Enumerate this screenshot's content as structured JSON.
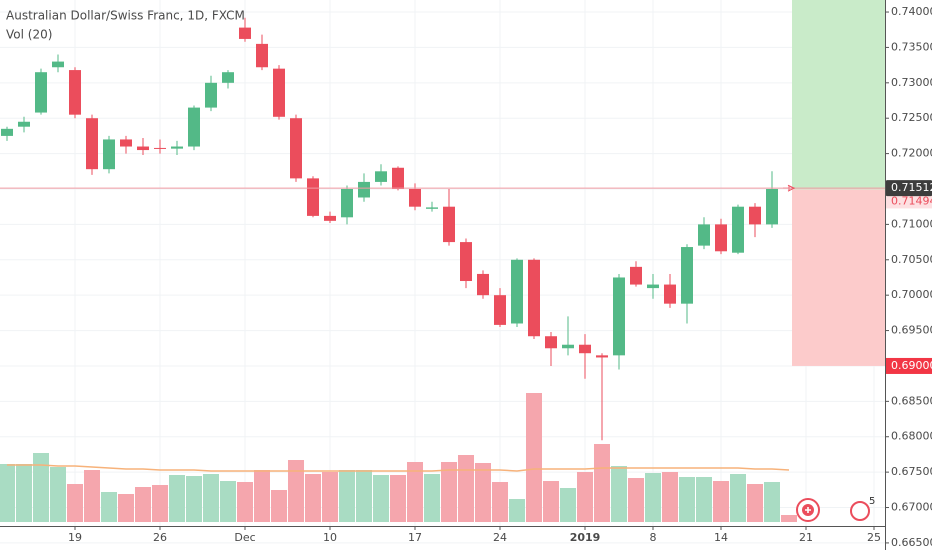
{
  "chart_data": {
    "type": "candlestick",
    "title": "Australian Dollar/Swiss Franc, 1D, FXCM",
    "indicator_label": "Vol (20)",
    "categories": [
      null,
      null,
      null,
      null,
      "19",
      null,
      null,
      null,
      null,
      "26",
      null,
      null,
      null,
      null,
      "Dec",
      null,
      null,
      null,
      null,
      "10",
      null,
      null,
      null,
      null,
      "17",
      null,
      null,
      null,
      null,
      "24",
      null,
      null,
      null,
      null,
      "2019",
      null,
      null,
      null,
      "8",
      null,
      null,
      null,
      "14",
      null,
      null,
      null,
      null,
      "21",
      null,
      null,
      null,
      "25"
    ],
    "open": [
      0.7225,
      0.7238,
      0.7258,
      0.7322,
      0.7318,
      0.725,
      0.7178,
      0.722,
      0.721,
      0.7208,
      0.7207,
      0.721,
      0.7265,
      0.73,
      0.7378,
      0.7355,
      0.732,
      0.725,
      0.7165,
      0.7112,
      0.711,
      0.7138,
      0.716,
      0.718,
      0.715,
      0.7122,
      0.7125,
      0.7075,
      0.703,
      0.7,
      0.696,
      0.705,
      0.6942,
      0.6925,
      0.693,
      0.6915,
      0.6915,
      0.704,
      0.701,
      0.7015,
      0.6988,
      0.707,
      0.71,
      0.706,
      0.7125,
      0.71,
      0.7152,
      null,
      null,
      null,
      null,
      null
    ],
    "high": [
      0.7238,
      0.7252,
      0.732,
      0.734,
      0.7322,
      0.7255,
      0.7225,
      0.7225,
      0.7222,
      0.722,
      0.7218,
      0.7268,
      0.731,
      0.7318,
      0.7392,
      0.7368,
      0.7325,
      0.7255,
      0.7168,
      0.7118,
      0.7155,
      0.7172,
      0.7185,
      0.7182,
      0.7158,
      0.7132,
      0.715,
      0.708,
      0.7035,
      0.701,
      0.7052,
      0.7052,
      0.6948,
      0.697,
      0.6945,
      0.6918,
      0.703,
      0.7048,
      0.703,
      0.703,
      0.7072,
      0.711,
      0.7108,
      0.7128,
      0.713,
      0.7175,
      0.7154,
      null,
      null,
      null,
      null,
      null
    ],
    "low": [
      0.7218,
      0.723,
      0.7255,
      0.7315,
      0.725,
      0.717,
      0.7172,
      0.72,
      0.7198,
      0.72,
      0.7198,
      0.7205,
      0.726,
      0.7292,
      0.7358,
      0.7318,
      0.7248,
      0.716,
      0.711,
      0.7102,
      0.71,
      0.7132,
      0.7155,
      0.7148,
      0.712,
      0.7118,
      0.707,
      0.701,
      0.6995,
      0.6955,
      0.6955,
      0.6938,
      0.69,
      0.6915,
      0.6882,
      0.6795,
      0.6895,
      0.7012,
      0.6995,
      0.6982,
      0.696,
      0.7065,
      0.7058,
      0.7058,
      0.7082,
      0.7095,
      0.7148,
      null,
      null,
      null,
      null,
      null
    ],
    "close": [
      0.7235,
      0.7245,
      0.7315,
      0.733,
      0.7255,
      0.7178,
      0.722,
      0.721,
      0.7205,
      0.7207,
      0.721,
      0.7265,
      0.73,
      0.7315,
      0.7362,
      0.7322,
      0.7252,
      0.7165,
      0.7112,
      0.7105,
      0.715,
      0.716,
      0.7175,
      0.715,
      0.7125,
      0.7124,
      0.7075,
      0.702,
      0.7,
      0.6958,
      0.705,
      0.6942,
      0.6925,
      0.693,
      0.6918,
      0.6912,
      0.7025,
      0.7015,
      0.7015,
      0.6988,
      0.7068,
      0.71,
      0.7062,
      0.7125,
      0.71,
      0.715,
      0.7151,
      null,
      null,
      null,
      null,
      null
    ],
    "volume": [
      58,
      58,
      69,
      55,
      38,
      52,
      30,
      28,
      35,
      37,
      47,
      46,
      48,
      41,
      40,
      52,
      32,
      62,
      48,
      50,
      52,
      52,
      47,
      47,
      60,
      48,
      60,
      67,
      59,
      40,
      23,
      129,
      41,
      34,
      50,
      78,
      56,
      44,
      49,
      50,
      45,
      45,
      41,
      48,
      38,
      40,
      7,
      null,
      null,
      null,
      null,
      null
    ],
    "volume_ma": [
      57,
      57,
      57,
      56,
      56,
      55,
      54,
      53,
      53,
      52,
      52,
      52,
      51,
      51,
      51,
      51,
      51,
      51,
      51,
      51,
      51,
      51,
      51,
      51,
      51,
      51,
      52,
      52,
      52,
      52,
      51,
      53,
      53,
      53,
      53,
      54,
      54,
      54,
      54,
      54,
      54,
      54,
      54,
      54,
      53,
      53,
      52,
      null,
      null,
      null,
      null,
      null
    ],
    "ylim": [
      0.664,
      0.7417
    ],
    "yticks": [
      {
        "value": 0.665,
        "label": "0.66500"
      },
      {
        "value": 0.67,
        "label": "0.67000"
      },
      {
        "value": 0.675,
        "label": "0.67500"
      },
      {
        "value": 0.68,
        "label": "0.68000"
      },
      {
        "value": 0.685,
        "label": "0.68500"
      },
      {
        "value": 0.69,
        "label": "0.69000"
      },
      {
        "value": 0.695,
        "label": "0.69500"
      },
      {
        "value": 0.7,
        "label": "0.70000"
      },
      {
        "value": 0.705,
        "label": "0.70500"
      },
      {
        "value": 0.71,
        "label": "0.71000"
      },
      {
        "value": 0.715,
        "label": "0.71500"
      },
      {
        "value": 0.72,
        "label": "0.72000"
      },
      {
        "value": 0.725,
        "label": "0.72500"
      },
      {
        "value": 0.73,
        "label": "0.73000"
      },
      {
        "value": 0.735,
        "label": "0.73500"
      },
      {
        "value": 0.74,
        "label": "0.74000"
      }
    ],
    "grid": true,
    "colors": {
      "up": "#53b987",
      "down": "#eb4d5c",
      "volume_up": "#a9dcc3",
      "volume_down": "#f5a6ad",
      "volume_ma": "#f7b27a"
    },
    "last_price": {
      "value": 0.71512,
      "label": "0.71512"
    },
    "position": {
      "entry": {
        "value": 0.71494,
        "label": "0.71494"
      },
      "stop": {
        "value": 0.69,
        "label": "0.69000"
      }
    },
    "events_badge": "5"
  }
}
